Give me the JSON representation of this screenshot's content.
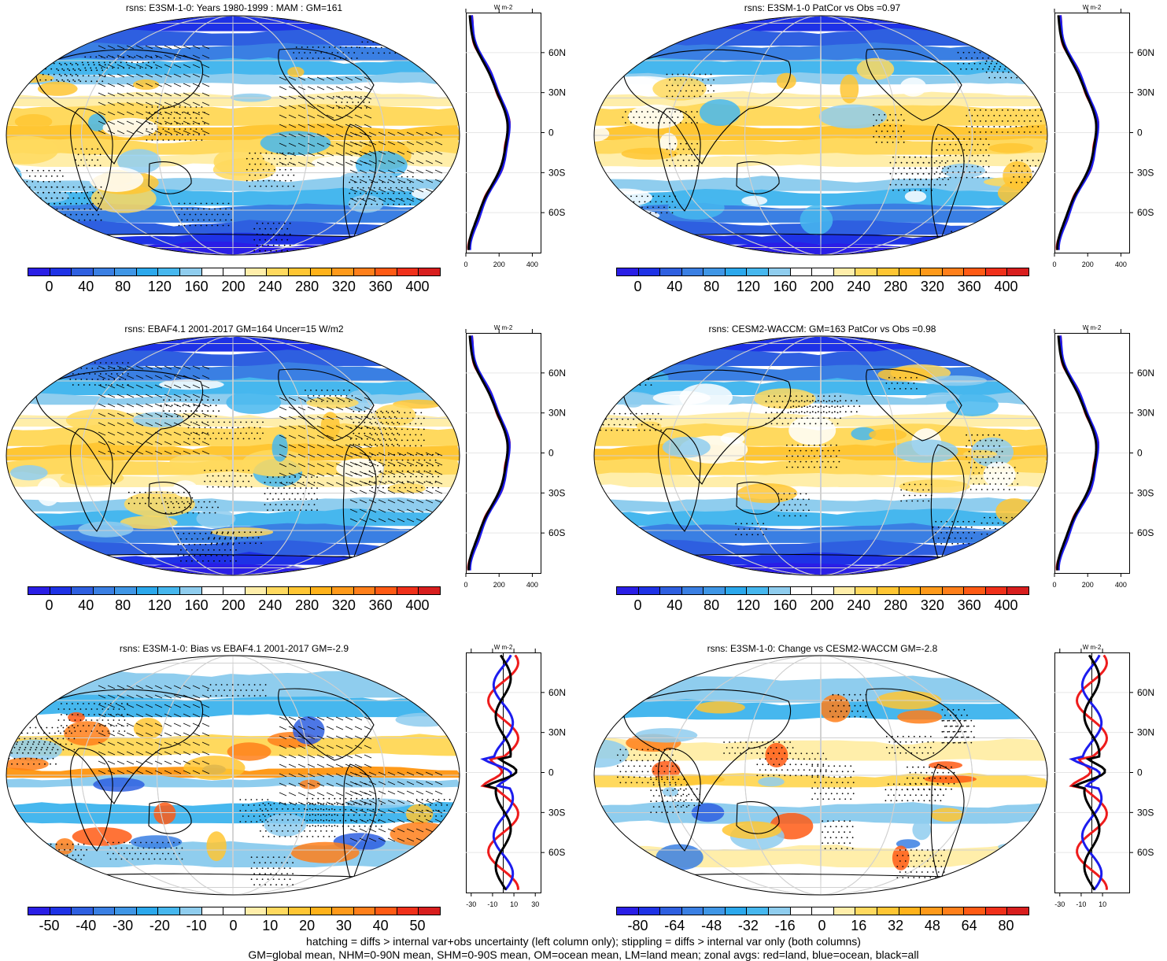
{
  "panels": [
    {
      "id": "p1",
      "title": "rsns: E3SM-1-0: Years 1980-1999 : MAM : GM=161",
      "colorbar": {
        "labels": [
          "0",
          "40",
          "80",
          "120",
          "160",
          "200",
          "240",
          "280",
          "320",
          "360",
          "400"
        ]
      },
      "zonal_xticks": [
        "0",
        "200",
        "400"
      ],
      "zonal_xlim": [
        0,
        450
      ],
      "zonal_yticks": [
        "60N",
        "30N",
        "0",
        "30S",
        "60S"
      ],
      "zonal_unit": "W m-2"
    },
    {
      "id": "p2",
      "title": "rsns: E3SM-1-0 PatCor vs Obs =0.97",
      "colorbar": {
        "labels": [
          "0",
          "40",
          "80",
          "120",
          "160",
          "200",
          "240",
          "280",
          "320",
          "360",
          "400"
        ]
      },
      "zonal_xticks": [
        "0",
        "200",
        "400"
      ],
      "zonal_xlim": [
        0,
        450
      ],
      "zonal_yticks": [
        "60N",
        "30N",
        "0",
        "30S",
        "60S"
      ],
      "zonal_unit": "W m-2"
    },
    {
      "id": "p3",
      "title": "rsns: EBAF4.1 2001-2017 GM=164 Uncer=15 W/m2",
      "colorbar": {
        "labels": [
          "0",
          "40",
          "80",
          "120",
          "160",
          "200",
          "240",
          "280",
          "320",
          "360",
          "400"
        ]
      },
      "zonal_xticks": [
        "0",
        "200",
        "400"
      ],
      "zonal_xlim": [
        0,
        450
      ],
      "zonal_yticks": [
        "60N",
        "30N",
        "0",
        "30S",
        "60S"
      ],
      "zonal_unit": "W m-2"
    },
    {
      "id": "p4",
      "title": "rsns: CESM2-WACCM: GM=163 PatCor vs Obs =0.98",
      "colorbar": {
        "labels": [
          "0",
          "40",
          "80",
          "120",
          "160",
          "200",
          "240",
          "280",
          "320",
          "360",
          "400"
        ]
      },
      "zonal_xticks": [
        "0",
        "200",
        "400"
      ],
      "zonal_xlim": [
        0,
        450
      ],
      "zonal_yticks": [
        "60N",
        "30N",
        "0",
        "30S",
        "60S"
      ],
      "zonal_unit": "W m-2"
    },
    {
      "id": "p5",
      "title": "rsns: E3SM-1-0: Bias vs EBAF4.1 2001-2017 GM=-2.9",
      "colorbar": {
        "labels": [
          "-50",
          "-40",
          "-30",
          "-20",
          "-10",
          "0",
          "10",
          "20",
          "30",
          "40",
          "50"
        ]
      },
      "zonal_xticks": [
        "-30",
        "-10",
        "10",
        "30"
      ],
      "zonal_xlim": [
        -35,
        35
      ],
      "zonal_yticks": [
        "60N",
        "30N",
        "0",
        "30S",
        "60S"
      ],
      "zonal_unit": "W m-2"
    },
    {
      "id": "p6",
      "title": "rsns: E3SM-1-0: Change vs CESM2-WACCM GM=-2.8",
      "colorbar": {
        "labels": [
          "-80",
          "-64",
          "-48",
          "-32",
          "-16",
          "0",
          "16",
          "32",
          "48",
          "64",
          "80"
        ]
      },
      "zonal_xticks": [
        "-30",
        "-10",
        "10"
      ],
      "zonal_xlim": [
        -35,
        35
      ],
      "zonal_yticks": [
        "60N",
        "30N",
        "0",
        "30S",
        "60S"
      ],
      "zonal_unit": "W m-2"
    }
  ],
  "palettes": {
    "sequential": [
      "#2a1ee6",
      "#1e32e6",
      "#2e5fe0",
      "#3a7fe3",
      "#3f96e6",
      "#2ba8ec",
      "#46b7ee",
      "#8fcdee",
      "#ffffff",
      "#ffffff",
      "#ffeeaa",
      "#ffd95e",
      "#ffc633",
      "#ffb21a",
      "#ff9a1a",
      "#ff7f1a",
      "#ff5a14",
      "#f0301a",
      "#d81e1e"
    ],
    "diverging": [
      "#2a1ee6",
      "#1e32e6",
      "#2e5fe0",
      "#3a7fe3",
      "#3f96e6",
      "#2ba8ec",
      "#46b7ee",
      "#8fcdee",
      "#ffffff",
      "#ffffff",
      "#ffeeaa",
      "#ffd95e",
      "#ffc633",
      "#ffb21a",
      "#ff9a1a",
      "#ff7f1a",
      "#ff5a14",
      "#f0301a",
      "#d81e1e"
    ]
  },
  "legend_colors": {
    "land": "#ee1c1c",
    "ocean": "#1c1cee",
    "all": "#000000"
  },
  "footer": {
    "line1": "hatching = diffs > internal var+obs uncertainty (left column only); stippling = diffs > internal var only (both columns)",
    "line2": "GM=global mean, NHM=0-90N mean, SHM=0-90S mean, OM=ocean mean, LM=land mean; zonal avgs: red=land, blue=ocean, black=all"
  }
}
